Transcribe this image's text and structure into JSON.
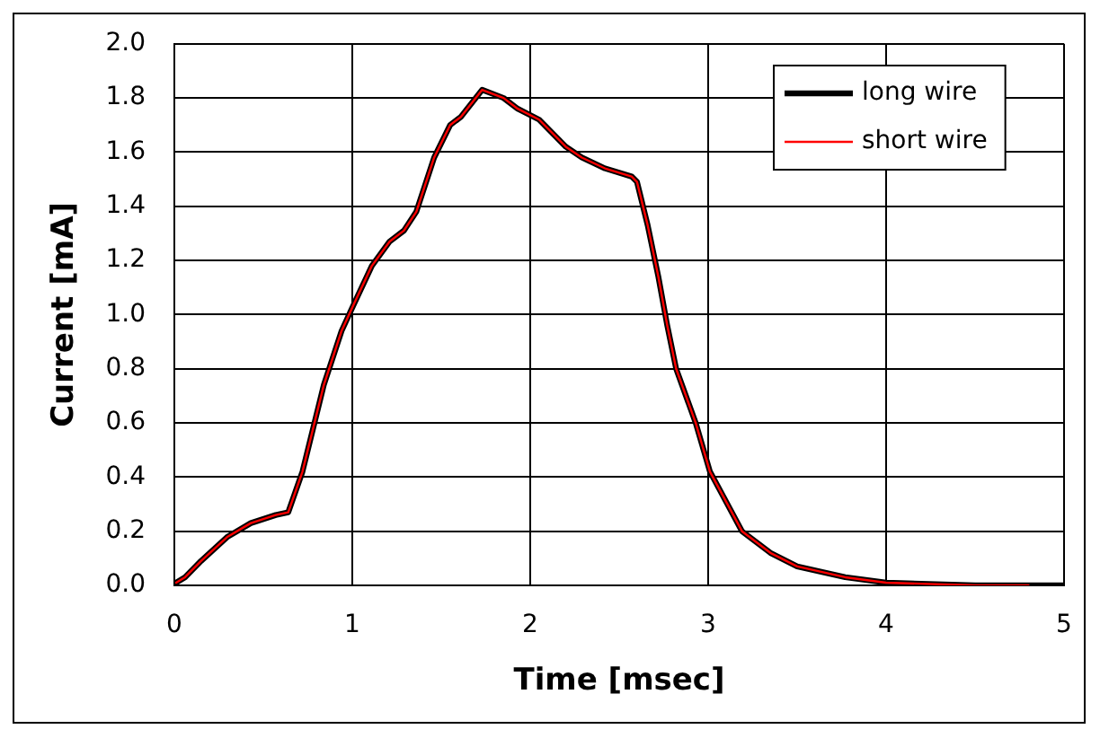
{
  "chart_data": {
    "type": "line",
    "xlabel": "Time [msec]",
    "ylabel": "Current [mA]",
    "xlim": [
      0,
      5
    ],
    "xticks": [
      0,
      1,
      2,
      3,
      4,
      5
    ],
    "ylim": [
      0,
      2
    ],
    "yticks": [
      {
        "value": 0,
        "label": "0.0"
      },
      {
        "value": 0.2,
        "label": "0.2"
      },
      {
        "value": 0.4,
        "label": "0.4"
      },
      {
        "value": 0.6,
        "label": "0.6"
      },
      {
        "value": 0.8,
        "label": "0.8"
      },
      {
        "value": 1,
        "label": "1.0"
      },
      {
        "value": 1.2,
        "label": "1.2"
      },
      {
        "value": 1.4,
        "label": "1.4"
      },
      {
        "value": 1.6,
        "label": "1.6"
      },
      {
        "value": 1.8,
        "label": "1.8"
      },
      {
        "value": 2,
        "label": "2.0"
      }
    ],
    "grid": true,
    "legend": "top right",
    "marker": "none",
    "line_style": "solid",
    "series": [
      {
        "name": "long wire",
        "color": "#000000",
        "x": [
          0.01,
          0.06,
          0.15,
          0.3,
          0.43,
          0.57,
          0.64,
          0.72,
          0.84,
          0.94,
          1.01,
          1.11,
          1.21,
          1.29,
          1.36,
          1.46,
          1.55,
          1.61,
          1.73,
          1.85,
          1.93,
          2.05,
          2.2,
          2.29,
          2.42,
          2.57,
          2.6,
          2.66,
          2.72,
          2.77,
          2.82,
          2.93,
          3.01,
          3.19,
          3.35,
          3.5,
          3.77,
          4.0,
          4.5,
          5.0
        ],
        "values": [
          0.01,
          0.03,
          0.09,
          0.18,
          0.23,
          0.26,
          0.27,
          0.42,
          0.74,
          0.94,
          1.04,
          1.18,
          1.27,
          1.31,
          1.38,
          1.58,
          1.7,
          1.73,
          1.83,
          1.8,
          1.76,
          1.72,
          1.62,
          1.58,
          1.54,
          1.51,
          1.49,
          1.33,
          1.14,
          0.96,
          0.8,
          0.6,
          0.42,
          0.2,
          0.12,
          0.07,
          0.03,
          0.01,
          0,
          0
        ]
      },
      {
        "name": "short wire",
        "color": "#ff0000",
        "x": [
          0.01,
          0.06,
          0.15,
          0.3,
          0.43,
          0.57,
          0.64,
          0.72,
          0.84,
          0.94,
          1.01,
          1.11,
          1.21,
          1.29,
          1.36,
          1.46,
          1.55,
          1.61,
          1.73,
          1.85,
          1.93,
          2.05,
          2.2,
          2.29,
          2.42,
          2.57,
          2.6,
          2.66,
          2.72,
          2.77,
          2.82,
          2.93,
          3.01,
          3.19,
          3.35,
          3.5,
          3.77,
          4.0,
          4.5,
          4.8
        ],
        "values": [
          0.01,
          0.03,
          0.09,
          0.18,
          0.23,
          0.26,
          0.27,
          0.42,
          0.74,
          0.94,
          1.04,
          1.18,
          1.27,
          1.31,
          1.38,
          1.58,
          1.7,
          1.73,
          1.83,
          1.8,
          1.76,
          1.72,
          1.62,
          1.58,
          1.54,
          1.51,
          1.49,
          1.33,
          1.14,
          0.96,
          0.8,
          0.6,
          0.42,
          0.2,
          0.12,
          0.07,
          0.03,
          0.01,
          0,
          0
        ]
      }
    ]
  }
}
